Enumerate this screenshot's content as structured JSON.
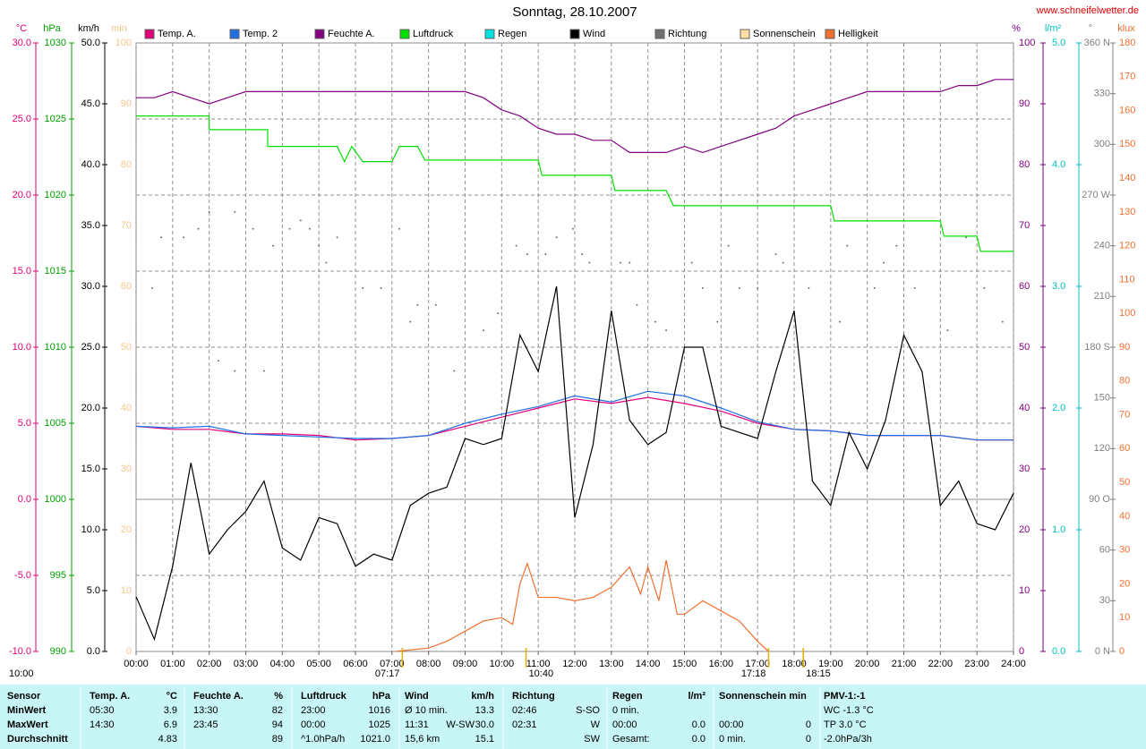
{
  "chart_data": {
    "type": "line",
    "title": "Sonntag, 28.10.2007",
    "site": "www.schneifelwetter.de",
    "timestamp": "10:00",
    "xlim": [
      0,
      24
    ],
    "xticks": [
      {
        "value": 0,
        "label": "00:00"
      },
      {
        "value": 1,
        "label": "01:00"
      },
      {
        "value": 2,
        "label": "02:00"
      },
      {
        "value": 3,
        "label": "03:00"
      },
      {
        "value": 4,
        "label": "04:00"
      },
      {
        "value": 5,
        "label": "05:00"
      },
      {
        "value": 6,
        "label": "06:00"
      },
      {
        "value": 7,
        "label": "07:00"
      },
      {
        "value": 8,
        "label": "08:00"
      },
      {
        "value": 9,
        "label": "09:00"
      },
      {
        "value": 10,
        "label": "10:00"
      },
      {
        "value": 11,
        "label": "11:00"
      },
      {
        "value": 12,
        "label": "12:00"
      },
      {
        "value": 13,
        "label": "13:00"
      },
      {
        "value": 14,
        "label": "14:00"
      },
      {
        "value": 15,
        "label": "15:00"
      },
      {
        "value": 16,
        "label": "16:00"
      },
      {
        "value": 17,
        "label": "17:00"
      },
      {
        "value": 18,
        "label": "18:00"
      },
      {
        "value": 19,
        "label": "19:00"
      },
      {
        "value": 20,
        "label": "20:00"
      },
      {
        "value": 21,
        "label": "21:00"
      },
      {
        "value": 22,
        "label": "22:00"
      },
      {
        "value": 23,
        "label": "23:00"
      },
      {
        "value": 24,
        "label": "24:00"
      }
    ],
    "grid": true,
    "annotations": [
      {
        "x": 7.283,
        "label": "07:17"
      },
      {
        "x": 10.667,
        "label": "10:40"
      },
      {
        "x": 17.3,
        "label": "17:18"
      },
      {
        "x": 18.25,
        "label": "18:15"
      }
    ],
    "axes": [
      {
        "label": "°C",
        "color": "#e0007a",
        "lim": [
          -10,
          30
        ],
        "ticks": [
          {
            "value": -10,
            "label": "-10.0"
          },
          {
            "value": -5,
            "label": "-5.0"
          },
          {
            "value": 0,
            "label": "0.0"
          },
          {
            "value": 5,
            "label": "5.0"
          },
          {
            "value": 10,
            "label": "10.0"
          },
          {
            "value": 15,
            "label": "15.0"
          },
          {
            "value": 20,
            "label": "20.0"
          },
          {
            "value": 25,
            "label": "25.0"
          },
          {
            "value": 30,
            "label": "30.0"
          }
        ]
      },
      {
        "label": "hPa",
        "color": "#00a000",
        "lim": [
          990,
          1030
        ],
        "ticks": [
          990,
          995,
          1000,
          1005,
          1010,
          1015,
          1020,
          1025,
          1030
        ]
      },
      {
        "label": "km/h",
        "color": "#000000",
        "lim": [
          0,
          50
        ],
        "ticks": [
          {
            "value": 0,
            "label": "0.0"
          },
          {
            "value": 5,
            "label": "5.0"
          },
          {
            "value": 10,
            "label": "10.0"
          },
          {
            "value": 15,
            "label": "15.0"
          },
          {
            "value": 20,
            "label": "20.0"
          },
          {
            "value": 25,
            "label": "25.0"
          },
          {
            "value": 30,
            "label": "30.0"
          },
          {
            "value": 35,
            "label": "35.0"
          },
          {
            "value": 40,
            "label": "40.0"
          },
          {
            "value": 45,
            "label": "45.0"
          },
          {
            "value": 50,
            "label": "50.0"
          }
        ]
      },
      {
        "label": "min",
        "color": "#f5c78a",
        "lim": [
          0,
          100
        ],
        "ticks": [
          0,
          10,
          20,
          30,
          40,
          50,
          60,
          70,
          80,
          90,
          100
        ]
      },
      {
        "label": "%",
        "color": "#800080",
        "lim": [
          0,
          100
        ],
        "ticks": [
          0,
          10,
          20,
          30,
          40,
          50,
          60,
          70,
          80,
          90,
          100
        ]
      },
      {
        "label": "l/m²",
        "color": "#00c0c0",
        "lim": [
          0,
          5
        ],
        "ticks": [
          {
            "value": 0,
            "label": "0.0"
          },
          {
            "value": 1,
            "label": "1.0"
          },
          {
            "value": 2,
            "label": "2.0"
          },
          {
            "value": 3,
            "label": "3.0"
          },
          {
            "value": 4,
            "label": "4.0"
          },
          {
            "value": 5,
            "label": "5.0"
          }
        ]
      },
      {
        "label": "°",
        "color": "#808080",
        "lim": [
          0,
          360
        ],
        "ticks": [
          {
            "value": 0,
            "label": "0 N"
          },
          30,
          60,
          {
            "value": 90,
            "label": "90 O"
          },
          120,
          150,
          {
            "value": 180,
            "label": "180 S"
          },
          210,
          240,
          {
            "value": 270,
            "label": "270 W"
          },
          300,
          330,
          {
            "value": 360,
            "label": "360 N"
          }
        ]
      },
      {
        "label": "klux",
        "color": "#f07030",
        "lim": [
          0,
          180
        ],
        "ticks": [
          0,
          10,
          20,
          30,
          40,
          50,
          60,
          70,
          80,
          90,
          100,
          110,
          120,
          130,
          140,
          150,
          160,
          170,
          180
        ]
      }
    ],
    "series": [
      {
        "name": "Temp. A.",
        "color": "#e0007a",
        "axis": 0,
        "x": [
          0,
          1,
          2,
          3,
          4,
          5,
          6,
          7,
          8,
          9,
          10,
          11,
          12,
          13,
          14,
          15,
          16,
          17,
          18,
          19,
          20,
          21,
          22,
          23,
          24
        ],
        "values": [
          4.8,
          4.6,
          4.6,
          4.3,
          4.3,
          4.2,
          3.9,
          4.0,
          4.2,
          4.8,
          5.4,
          6.0,
          6.6,
          6.3,
          6.7,
          6.3,
          5.8,
          5.0,
          4.6,
          4.5,
          4.2,
          4.2,
          4.2,
          3.9,
          3.9
        ]
      },
      {
        "name": "Temp. 2",
        "color": "#2070e0",
        "axis": 0,
        "x": [
          0,
          1,
          2,
          3,
          4,
          5,
          6,
          7,
          8,
          9,
          10,
          11,
          12,
          13,
          14,
          15,
          16,
          17,
          18,
          19,
          20,
          21,
          22,
          23,
          24
        ],
        "values": [
          4.8,
          4.7,
          4.8,
          4.3,
          4.2,
          4.1,
          4.0,
          4.0,
          4.2,
          5.0,
          5.6,
          6.1,
          6.8,
          6.4,
          7.1,
          6.8,
          6.0,
          5.1,
          4.6,
          4.5,
          4.2,
          4.2,
          4.2,
          3.9,
          3.9
        ]
      },
      {
        "name": "Feuchte A.",
        "color": "#800080",
        "axis": 4,
        "x": [
          0,
          0.5,
          1,
          1.5,
          2,
          2.5,
          3,
          4,
          5,
          6,
          7,
          8,
          9,
          9.5,
          10,
          10.5,
          11,
          11.5,
          12,
          12.5,
          13,
          13.5,
          14,
          14.5,
          15,
          15.5,
          16,
          16.5,
          17,
          17.5,
          18,
          18.5,
          19,
          19.5,
          20,
          20.5,
          21,
          21.5,
          22,
          22.5,
          23,
          23.5,
          24
        ],
        "values": [
          91,
          91,
          92,
          91,
          90,
          91,
          92,
          92,
          92,
          92,
          92,
          92,
          92,
          91,
          89,
          88,
          86,
          85,
          85,
          84,
          84,
          82,
          82,
          82,
          83,
          82,
          83,
          84,
          85,
          86,
          88,
          89,
          90,
          91,
          92,
          92,
          92,
          92,
          92,
          93,
          93,
          94,
          94
        ]
      },
      {
        "name": "Luftdruck",
        "color": "#00e000",
        "axis": 1,
        "x": [
          0,
          2,
          2,
          3.6,
          3.6,
          5.5,
          5.7,
          5.9,
          6.2,
          7,
          7.2,
          7.7,
          7.9,
          11,
          11.1,
          13,
          13.1,
          14.5,
          14.7,
          19,
          19.1,
          22,
          22.1,
          23,
          23.1,
          24
        ],
        "values": [
          1025.2,
          1025.2,
          1024.3,
          1024.3,
          1023.2,
          1023.2,
          1022.2,
          1023.2,
          1022.2,
          1022.2,
          1023.2,
          1023.2,
          1022.3,
          1022.3,
          1021.3,
          1021.3,
          1020.3,
          1020.3,
          1019.3,
          1019.3,
          1018.3,
          1018.3,
          1017.3,
          1017.3,
          1016.3,
          1016.3
        ]
      },
      {
        "name": "Regen",
        "color": "#00e0e0",
        "axis": 5,
        "x": [],
        "values": []
      },
      {
        "name": "Wind",
        "color": "#000000",
        "axis": 2,
        "x": [
          0,
          0.5,
          1,
          1.5,
          2,
          2.5,
          3,
          3.5,
          4,
          4.5,
          5,
          5.5,
          6,
          6.5,
          7,
          7.5,
          8,
          8.5,
          9,
          9.5,
          10,
          10.5,
          11,
          11.5,
          12,
          12.5,
          13,
          13.5,
          14,
          14.5,
          15,
          15.5,
          16,
          16.5,
          17,
          17.5,
          18,
          18.5,
          19,
          19.5,
          20,
          20.5,
          21,
          21.5,
          22,
          22.5,
          23,
          23.5,
          24
        ],
        "values": [
          4.5,
          1,
          7,
          15.5,
          8,
          10,
          11.5,
          14,
          8.5,
          7.5,
          11,
          10.5,
          7,
          8,
          7.5,
          12,
          13,
          13.5,
          17.5,
          17,
          17.5,
          26,
          23,
          30,
          11,
          17,
          28,
          19,
          17,
          18,
          25,
          25,
          18.5,
          18,
          17.5,
          23,
          28,
          14,
          12,
          18,
          15,
          19,
          26,
          23,
          12,
          14,
          10.5,
          10,
          13
        ]
      },
      {
        "name": "Richtung",
        "color": "#707070",
        "axis": 6,
        "type": "scatter",
        "x": [
          0.44,
          0.69,
          1.3,
          1.7,
          2.0,
          2.25,
          2.7,
          2.7,
          3.2,
          3.5,
          3.75,
          4.2,
          4.5,
          4.75,
          5.0,
          5.2,
          5.5,
          6.2,
          6.7,
          7.2,
          7.5,
          7.7,
          8.2,
          8.7,
          9.5,
          9.9,
          10.4,
          10.7,
          11.2,
          11.5,
          11.95,
          12.2,
          12.4,
          13.25,
          13.5,
          13.7,
          14.2,
          14.5,
          15.2,
          15.5,
          15.9,
          16.2,
          16.5,
          17.0,
          17.5,
          17.7,
          18.4,
          19.25,
          19.45,
          20.2,
          20.45,
          20.8,
          21.3,
          22.2,
          22.7,
          23.2,
          23.7
        ],
        "values": [
          215,
          245,
          245,
          250,
          260,
          172,
          260,
          166,
          250,
          166,
          240,
          250,
          255,
          250,
          240,
          230,
          245,
          215,
          215,
          250,
          195,
          205,
          205,
          166,
          190,
          200,
          240,
          235,
          235,
          245,
          250,
          235,
          230,
          230,
          230,
          205,
          195,
          190,
          230,
          215,
          195,
          240,
          215,
          215,
          235,
          230,
          215,
          195,
          240,
          215,
          230,
          240,
          215,
          190,
          245,
          215,
          195
        ]
      },
      {
        "name": "Sonnenschein",
        "color": "#ffe0a0",
        "axis": 3,
        "x": [],
        "values": []
      },
      {
        "name": "Helligkeit",
        "color": "#f07030",
        "axis": 7,
        "x": [
          7.1,
          8,
          8.5,
          9,
          9.5,
          10,
          10.3,
          10.5,
          10.7,
          11,
          11.5,
          12,
          12.5,
          13,
          13.5,
          13.8,
          14,
          14.3,
          14.5,
          14.8,
          15,
          15.5,
          16,
          16.5,
          17,
          17.3
        ],
        "values": [
          0,
          1,
          3,
          6,
          9,
          10,
          8,
          20,
          26,
          16,
          16,
          15,
          16,
          19,
          25,
          17,
          25,
          15,
          27,
          11,
          11,
          15,
          12,
          9,
          3,
          0
        ]
      }
    ]
  },
  "stats": {
    "rows": [
      [
        "Sensor",
        "Temp. A.",
        "°C",
        "Feuchte A.",
        "%",
        "Luftdruck",
        "hPa",
        "Wind",
        null,
        "km/h",
        "Richtung",
        null,
        "Regen",
        "l/m²",
        "Sonnenschein min",
        null,
        "PMV-1:-1"
      ],
      [
        "MinWert",
        "05:30",
        "3.9",
        "13:30",
        "82",
        "23:00",
        "1016",
        "Ø 10 min.",
        null,
        "13.3",
        "02:46",
        "S-SO",
        "0 min.",
        null,
        null,
        null,
        "WC -1.3 °C"
      ],
      [
        "MaxWert",
        "14:30",
        "6.9",
        "23:45",
        "94",
        "00:00",
        "1025",
        "11:31",
        "W-SW",
        "30.0",
        "02:31",
        "W",
        "00:00",
        "0.0",
        "00:00",
        "0",
        "TP 3.0 °C"
      ],
      [
        "Durchschnitt",
        null,
        "4.83",
        null,
        "89",
        "^1.0hPa/h",
        "1021.0",
        "15,6 km",
        null,
        "15.1",
        null,
        "SW",
        "Gesamt:",
        "0.0",
        "0 min.",
        "0",
        "-2.0hPa/3h"
      ]
    ]
  }
}
